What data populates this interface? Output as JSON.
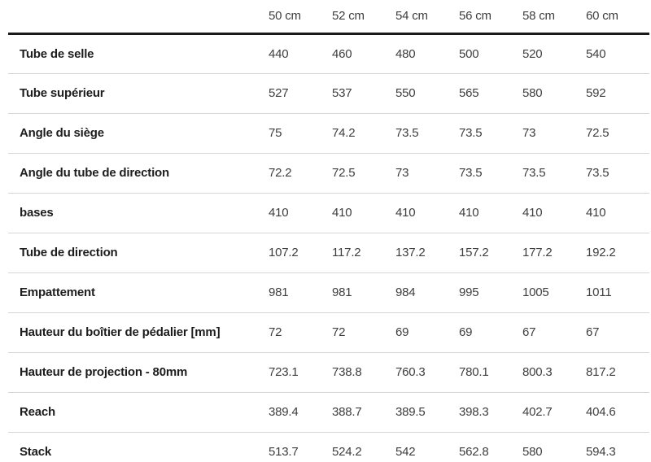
{
  "table": {
    "columns": [
      "50 cm",
      "52 cm",
      "54 cm",
      "56 cm",
      "58 cm",
      "60 cm"
    ],
    "rows": [
      {
        "label": "Tube de selle",
        "values": [
          "440",
          "460",
          "480",
          "500",
          "520",
          "540"
        ]
      },
      {
        "label": "Tube supérieur",
        "values": [
          "527",
          "537",
          "550",
          "565",
          "580",
          "592"
        ]
      },
      {
        "label": "Angle du siège",
        "values": [
          "75",
          "74.2",
          "73.5",
          "73.5",
          "73",
          "72.5"
        ]
      },
      {
        "label": "Angle du tube de direction",
        "values": [
          "72.2",
          "72.5",
          "73",
          "73.5",
          "73.5",
          "73.5"
        ]
      },
      {
        "label": "bases",
        "values": [
          "410",
          "410",
          "410",
          "410",
          "410",
          "410"
        ]
      },
      {
        "label": "Tube de direction",
        "values": [
          "107.2",
          "117.2",
          "137.2",
          "157.2",
          "177.2",
          "192.2"
        ]
      },
      {
        "label": "Empattement",
        "values": [
          "981",
          "981",
          "984",
          "995",
          "1005",
          "1011"
        ]
      },
      {
        "label": "Hauteur du boîtier de pédalier [mm]",
        "values": [
          "72",
          "72",
          "69",
          "69",
          "67",
          "67"
        ]
      },
      {
        "label": "Hauteur de projection - 80mm",
        "values": [
          "723.1",
          "738.8",
          "760.3",
          "780.1",
          "800.3",
          "817.2"
        ]
      },
      {
        "label": "Reach",
        "values": [
          "389.4",
          "388.7",
          "389.5",
          "398.3",
          "402.7",
          "404.6"
        ]
      },
      {
        "label": "Stack",
        "values": [
          "513.7",
          "524.2",
          "542",
          "562.8",
          "580",
          "594.3"
        ]
      }
    ]
  },
  "colors": {
    "background": "#ffffff",
    "header_rule": "#1a1a1a",
    "row_divider": "#d6d6d6",
    "label_text": "#1d1d1d",
    "value_text": "#3e3e3e",
    "header_text": "#3e3e3e"
  },
  "chart_data": {
    "type": "table",
    "categories": [
      "50 cm",
      "52 cm",
      "54 cm",
      "56 cm",
      "58 cm",
      "60 cm"
    ],
    "series": [
      {
        "name": "Tube de selle",
        "values": [
          440,
          460,
          480,
          500,
          520,
          540
        ]
      },
      {
        "name": "Tube supérieur",
        "values": [
          527,
          537,
          550,
          565,
          580,
          592
        ]
      },
      {
        "name": "Angle du siège",
        "values": [
          75,
          74.2,
          73.5,
          73.5,
          73,
          72.5
        ]
      },
      {
        "name": "Angle du tube de direction",
        "values": [
          72.2,
          72.5,
          73,
          73.5,
          73.5,
          73.5
        ]
      },
      {
        "name": "bases",
        "values": [
          410,
          410,
          410,
          410,
          410,
          410
        ]
      },
      {
        "name": "Tube de direction",
        "values": [
          107.2,
          117.2,
          137.2,
          157.2,
          177.2,
          192.2
        ]
      },
      {
        "name": "Empattement",
        "values": [
          981,
          981,
          984,
          995,
          1005,
          1011
        ]
      },
      {
        "name": "Hauteur du boîtier de pédalier [mm]",
        "values": [
          72,
          72,
          69,
          69,
          67,
          67
        ]
      },
      {
        "name": "Hauteur de projection - 80mm",
        "values": [
          723.1,
          738.8,
          760.3,
          780.1,
          800.3,
          817.2
        ]
      },
      {
        "name": "Reach",
        "values": [
          389.4,
          388.7,
          389.5,
          398.3,
          402.7,
          404.6
        ]
      },
      {
        "name": "Stack",
        "values": [
          513.7,
          524.2,
          542,
          562.8,
          580,
          594.3
        ]
      }
    ]
  }
}
